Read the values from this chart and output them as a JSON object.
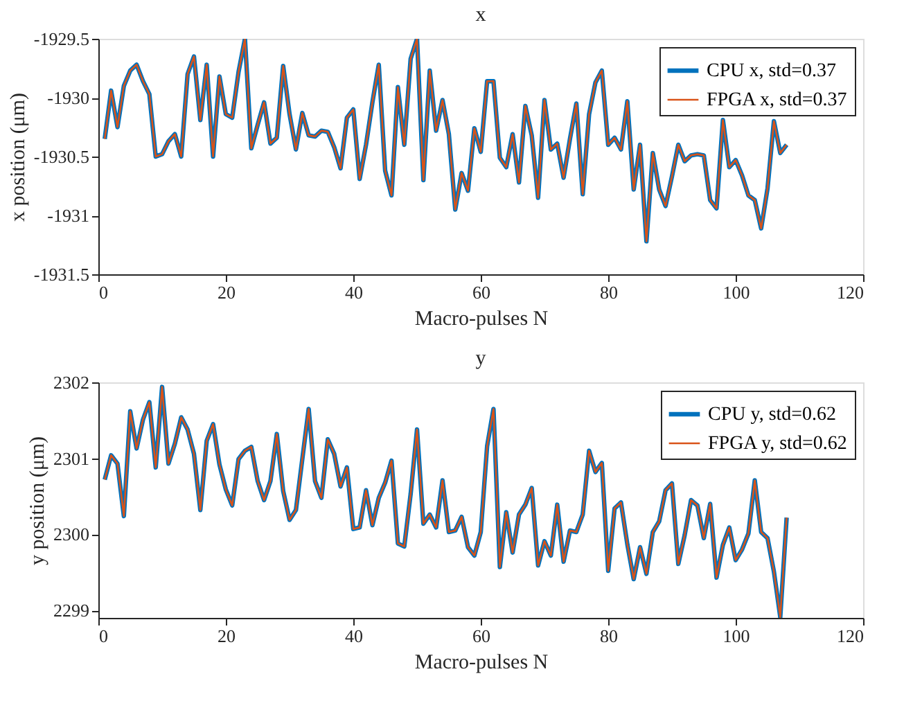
{
  "chart_data": [
    {
      "type": "line",
      "title": "x",
      "xlabel": "Macro-pulses N",
      "ylabel": "x position (μm)",
      "xlim": [
        0,
        120
      ],
      "xticks": [
        0,
        20,
        40,
        60,
        80,
        100,
        120
      ],
      "ylim": [
        -1931.5,
        -1929.5
      ],
      "yticks": [
        -1931.5,
        -1931,
        -1930.5,
        -1930,
        -1929.5
      ],
      "grid": false,
      "legend": "top right",
      "marker": "none",
      "line_style": "solid",
      "x": [
        1,
        2,
        3,
        4,
        5,
        6,
        7,
        8,
        9,
        10,
        11,
        12,
        13,
        14,
        15,
        16,
        17,
        18,
        19,
        20,
        21,
        22,
        23,
        24,
        25,
        26,
        27,
        28,
        29,
        30,
        31,
        32,
        33,
        34,
        35,
        36,
        37,
        38,
        39,
        40,
        41,
        42,
        43,
        44,
        45,
        46,
        47,
        48,
        49,
        50,
        51,
        52,
        53,
        54,
        55,
        56,
        57,
        58,
        59,
        60,
        61,
        62,
        63,
        64,
        65,
        66,
        67,
        68,
        69,
        70,
        71,
        72,
        73,
        74,
        75,
        76,
        77,
        78,
        79,
        80,
        81,
        82,
        83,
        84,
        85,
        86,
        87,
        88,
        89,
        90,
        91,
        92,
        93,
        94,
        95,
        96,
        97,
        98,
        99,
        100,
        101,
        102,
        103,
        104,
        105,
        106,
        107,
        108
      ],
      "series": [
        {
          "name": "CPU x, std=0.37",
          "color": "#0072bd",
          "values": [
            -1930.35,
            -1929.94,
            -1930.25,
            -1929.9,
            -1929.77,
            -1929.72,
            -1929.86,
            -1929.97,
            -1930.5,
            -1930.48,
            -1930.37,
            -1930.31,
            -1930.5,
            -1929.8,
            -1929.65,
            -1930.19,
            -1929.72,
            -1930.5,
            -1929.82,
            -1930.14,
            -1930.17,
            -1929.78,
            -1929.5,
            -1930.43,
            -1930.23,
            -1930.04,
            -1930.39,
            -1930.34,
            -1929.73,
            -1930.14,
            -1930.44,
            -1930.13,
            -1930.32,
            -1930.33,
            -1930.28,
            -1930.29,
            -1930.42,
            -1930.6,
            -1930.17,
            -1930.1,
            -1930.69,
            -1930.4,
            -1930.04,
            -1929.72,
            -1930.62,
            -1930.83,
            -1929.91,
            -1930.4,
            -1929.67,
            -1929.5,
            -1930.7,
            -1929.77,
            -1930.28,
            -1930.02,
            -1930.31,
            -1930.95,
            -1930.64,
            -1930.79,
            -1930.26,
            -1930.46,
            -1929.86,
            -1929.86,
            -1930.51,
            -1930.59,
            -1930.31,
            -1930.72,
            -1930.07,
            -1930.32,
            -1930.85,
            -1930.02,
            -1930.44,
            -1930.39,
            -1930.68,
            -1930.35,
            -1930.05,
            -1930.82,
            -1930.14,
            -1929.87,
            -1929.77,
            -1930.4,
            -1930.34,
            -1930.44,
            -1930.03,
            -1930.78,
            -1930.4,
            -1931.22,
            -1930.47,
            -1930.78,
            -1930.92,
            -1930.67,
            -1930.4,
            -1930.54,
            -1930.49,
            -1930.48,
            -1930.49,
            -1930.87,
            -1930.94,
            -1930.19,
            -1930.59,
            -1930.53,
            -1930.66,
            -1930.83,
            -1930.87,
            -1931.11,
            -1930.77,
            -1930.2,
            -1930.47,
            -1930.4
          ]
        },
        {
          "name": "FPGA x, std=0.37",
          "color": "#d95319",
          "values": [
            -1930.35,
            -1929.94,
            -1930.25,
            -1929.9,
            -1929.77,
            -1929.72,
            -1929.86,
            -1929.97,
            -1930.5,
            -1930.48,
            -1930.37,
            -1930.31,
            -1930.5,
            -1929.8,
            -1929.65,
            -1930.19,
            -1929.72,
            -1930.5,
            -1929.82,
            -1930.14,
            -1930.17,
            -1929.78,
            -1929.5,
            -1930.43,
            -1930.23,
            -1930.04,
            -1930.39,
            -1930.34,
            -1929.73,
            -1930.14,
            -1930.44,
            -1930.13,
            -1930.32,
            -1930.33,
            -1930.28,
            -1930.29,
            -1930.42,
            -1930.6,
            -1930.17,
            -1930.1,
            -1930.69,
            -1930.4,
            -1930.04,
            -1929.72,
            -1930.62,
            -1930.83,
            -1929.91,
            -1930.4,
            -1929.67,
            -1929.5,
            -1930.7,
            -1929.77,
            -1930.28,
            -1930.02,
            -1930.31,
            -1930.95,
            -1930.64,
            -1930.79,
            -1930.26,
            -1930.46,
            -1929.86,
            -1929.86,
            -1930.51,
            -1930.59,
            -1930.31,
            -1930.72,
            -1930.07,
            -1930.32,
            -1930.85,
            -1930.02,
            -1930.44,
            -1930.39,
            -1930.68,
            -1930.35,
            -1930.05,
            -1930.82,
            -1930.14,
            -1929.87,
            -1929.77,
            -1930.4,
            -1930.34,
            -1930.44,
            -1930.03,
            -1930.78,
            -1930.4,
            -1931.22,
            -1930.47,
            -1930.78,
            -1930.92,
            -1930.67,
            -1930.4,
            -1930.54,
            -1930.49,
            -1930.48,
            -1930.49,
            -1930.87,
            -1930.94,
            -1930.19,
            -1930.59,
            -1930.53,
            -1930.66,
            -1930.83,
            -1930.87,
            -1931.11,
            -1930.77,
            -1930.2,
            -1930.47,
            -1930.4
          ]
        }
      ]
    },
    {
      "type": "line",
      "title": "y",
      "xlabel": "Macro-pulses N",
      "ylabel": "y position (μm)",
      "xlim": [
        0,
        120
      ],
      "xticks": [
        0,
        20,
        40,
        60,
        80,
        100,
        120
      ],
      "ylim": [
        2298.9,
        2302
      ],
      "yticks": [
        2299,
        2300,
        2301,
        2302
      ],
      "grid": false,
      "legend": "top right",
      "marker": "none",
      "line_style": "solid",
      "x": [
        1,
        2,
        3,
        4,
        5,
        6,
        7,
        8,
        9,
        10,
        11,
        12,
        13,
        14,
        15,
        16,
        17,
        18,
        19,
        20,
        21,
        22,
        23,
        24,
        25,
        26,
        27,
        28,
        29,
        30,
        31,
        32,
        33,
        34,
        35,
        36,
        37,
        38,
        39,
        40,
        41,
        42,
        43,
        44,
        45,
        46,
        47,
        48,
        49,
        50,
        51,
        52,
        53,
        54,
        55,
        56,
        57,
        58,
        59,
        60,
        61,
        62,
        63,
        64,
        65,
        66,
        67,
        68,
        69,
        70,
        71,
        72,
        73,
        74,
        75,
        76,
        77,
        78,
        79,
        80,
        81,
        82,
        83,
        84,
        85,
        86,
        87,
        88,
        89,
        90,
        91,
        92,
        93,
        94,
        95,
        96,
        97,
        98,
        99,
        100,
        101,
        102,
        103,
        104,
        105,
        106,
        107,
        108
      ],
      "series": [
        {
          "name": "CPU y, std=0.62",
          "color": "#0072bd",
          "values": [
            2300.72,
            2301.04,
            2300.93,
            2300.24,
            2301.62,
            2301.13,
            2301.51,
            2301.74,
            2300.88,
            2301.94,
            2300.93,
            2301.19,
            2301.54,
            2301.38,
            2301.06,
            2300.32,
            2301.23,
            2301.45,
            2300.92,
            2300.59,
            2300.38,
            2300.99,
            2301.1,
            2301.15,
            2300.7,
            2300.45,
            2300.7,
            2301.32,
            2300.57,
            2300.19,
            2300.32,
            2300.99,
            2301.65,
            2300.7,
            2300.48,
            2301.25,
            2301.06,
            2300.63,
            2300.88,
            2300.07,
            2300.09,
            2300.58,
            2300.12,
            2300.48,
            2300.68,
            2300.97,
            2299.88,
            2299.84,
            2300.53,
            2301.38,
            2300.14,
            2300.26,
            2300.09,
            2300.71,
            2300.03,
            2300.05,
            2300.23,
            2299.83,
            2299.72,
            2300.03,
            2301.16,
            2301.65,
            2299.57,
            2300.29,
            2299.76,
            2300.26,
            2300.39,
            2300.61,
            2299.59,
            2299.91,
            2299.72,
            2300.39,
            2299.64,
            2300.05,
            2300.03,
            2300.26,
            2301.1,
            2300.82,
            2300.94,
            2299.52,
            2300.34,
            2300.42,
            2299.87,
            2299.41,
            2299.83,
            2299.48,
            2300.03,
            2300.17,
            2300.58,
            2300.67,
            2299.61,
            2299.99,
            2300.45,
            2300.38,
            2299.95,
            2300.4,
            2299.43,
            2299.86,
            2300.09,
            2299.66,
            2299.8,
            2300.01,
            2300.71,
            2300.03,
            2299.95,
            2299.51,
            2298.91,
            2300.22
          ]
        },
        {
          "name": "FPGA y, std=0.62",
          "color": "#d95319",
          "values": [
            2300.72,
            2301.04,
            2300.93,
            2300.24,
            2301.62,
            2301.13,
            2301.51,
            2301.74,
            2300.88,
            2301.94,
            2300.93,
            2301.19,
            2301.54,
            2301.38,
            2301.06,
            2300.32,
            2301.23,
            2301.45,
            2300.92,
            2300.59,
            2300.38,
            2300.99,
            2301.1,
            2301.15,
            2300.7,
            2300.45,
            2300.7,
            2301.32,
            2300.57,
            2300.19,
            2300.32,
            2300.99,
            2301.65,
            2300.7,
            2300.48,
            2301.25,
            2301.06,
            2300.63,
            2300.88,
            2300.07,
            2300.09,
            2300.58,
            2300.12,
            2300.48,
            2300.68,
            2300.97,
            2299.88,
            2299.84,
            2300.53,
            2301.38,
            2300.14,
            2300.26,
            2300.09,
            2300.71,
            2300.03,
            2300.05,
            2300.23,
            2299.83,
            2299.72,
            2300.03,
            2301.16,
            2301.65,
            2299.57,
            2300.29,
            2299.76,
            2300.26,
            2300.39,
            2300.61,
            2299.59,
            2299.91,
            2299.72,
            2300.39,
            2299.64,
            2300.05,
            2300.03,
            2300.26,
            2301.1,
            2300.82,
            2300.94,
            2299.52,
            2300.34,
            2300.42,
            2299.87,
            2299.41,
            2299.83,
            2299.48,
            2300.03,
            2300.17,
            2300.58,
            2300.67,
            2299.61,
            2299.99,
            2300.45,
            2300.38,
            2299.95,
            2300.4,
            2299.43,
            2299.86,
            2300.09,
            2299.66,
            2299.8,
            2300.01,
            2300.71,
            2300.03,
            2299.95,
            2299.51,
            2298.91,
            2300.22
          ]
        }
      ]
    }
  ]
}
